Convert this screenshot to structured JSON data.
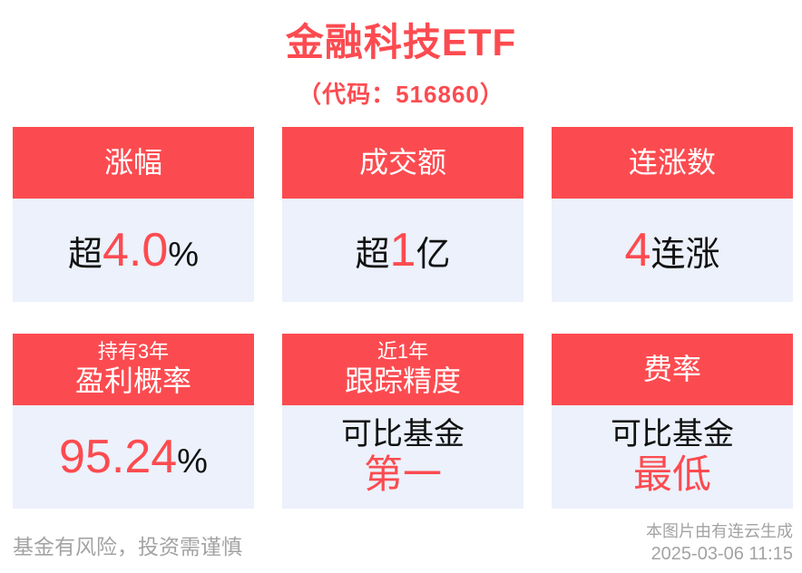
{
  "title": "金融科技ETF",
  "subtitle": "（代码：516860）",
  "colors": {
    "accent": "#fc4b50",
    "card_bg": "#ecf1fb",
    "text": "#111111",
    "muted": "#a3a3a3"
  },
  "cards": [
    {
      "header_small": "",
      "header_main": "涨幅",
      "value": {
        "prefix": "超",
        "highlight": "4.0",
        "suffix": "%"
      }
    },
    {
      "header_small": "",
      "header_main": "成交额",
      "value": {
        "prefix": "超",
        "highlight": "1",
        "suffix": "亿"
      }
    },
    {
      "header_small": "",
      "header_main": "连涨数",
      "value": {
        "prefix": "",
        "highlight": "4",
        "suffix": "连涨"
      }
    },
    {
      "header_small": "持有3年",
      "header_main": "盈利概率",
      "value": {
        "prefix": "",
        "highlight": "95.24",
        "suffix": "%"
      }
    },
    {
      "header_small": "近1年",
      "header_main": "跟踪精度",
      "value2": {
        "line1": "可比基金",
        "line2": "第一"
      }
    },
    {
      "header_small": "",
      "header_main": "费率",
      "value2": {
        "line1": "可比基金",
        "line2": "最低"
      }
    }
  ],
  "footer": {
    "disclaimer": "基金有风险，投资需谨慎",
    "generator": "本图片由有连云生成",
    "timestamp": "2025-03-06 11:15"
  }
}
